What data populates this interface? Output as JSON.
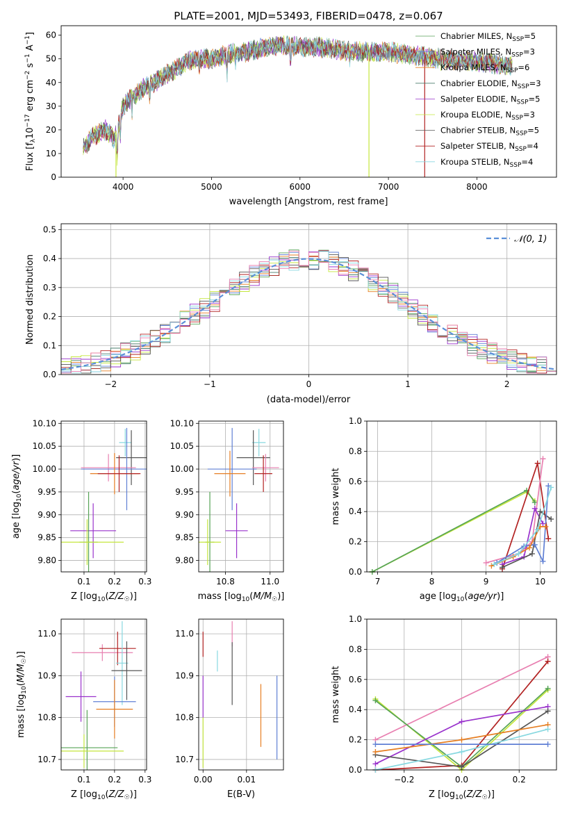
{
  "title": "PLATE=2001, MJD=53493, FIBERID=0478, z=0.067",
  "colors": {
    "chabrier_miles": "#56a356",
    "salpeter_miles": "#5f7fd4",
    "kroupa_miles": "#e67e22",
    "chabrier_elodie": "#4a7c6e",
    "salpeter_elodie": "#9932cc",
    "kroupa_elodie": "#c4e63c",
    "chabrier_stelib": "#555555",
    "salpeter_stelib": "#b22222",
    "kroupa_stelib": "#87d8e0",
    "extra_pink": "#e87fb0",
    "normal_curve": "#5a8fd8"
  },
  "chart_data": [
    {
      "id": "spectrum",
      "type": "line",
      "title": "PLATE=2001, MJD=53493, FIBERID=0478, z=0.067",
      "xlabel": "wavelength [Angstrom, rest frame]",
      "ylabel_parts": [
        "Flux [f",
        "λ",
        "10",
        "−17",
        " erg cm",
        "−2",
        " s",
        "−1",
        " A",
        "−1",
        "]"
      ],
      "xlim": [
        3300,
        8900
      ],
      "ylim": [
        0,
        64
      ],
      "xticks": [
        "4000",
        "5000",
        "6000",
        "7000",
        "8000"
      ],
      "yticks": [
        "0",
        "10",
        "20",
        "30",
        "40",
        "50",
        "60"
      ],
      "continuum": {
        "x": [
          3550,
          3650,
          3800,
          3900,
          4000,
          4100,
          4250,
          4400,
          4600,
          4800,
          5000,
          5200,
          5400,
          5600,
          5800,
          6000,
          6200,
          6400,
          6600,
          6800,
          7000,
          7200,
          7400,
          7600,
          7800,
          8000,
          8200,
          8400
        ],
        "y": [
          12,
          17,
          20,
          16,
          30,
          34,
          38,
          41,
          46,
          50,
          50,
          52,
          53,
          55,
          56,
          55,
          55,
          54,
          53,
          53,
          53,
          52,
          51,
          50,
          49,
          49,
          48,
          47
        ]
      },
      "legend": [
        {
          "label": "Chabrier MILES, N",
          "sub": "SSP",
          "value": "=5",
          "color_key": "chabrier_miles"
        },
        {
          "label": "Salpeter MILES, N",
          "sub": "SSP",
          "value": "=3",
          "color_key": "salpeter_miles"
        },
        {
          "label": "Kroupa MILES, N",
          "sub": "SSP",
          "value": "=6",
          "color_key": "kroupa_miles"
        },
        {
          "label": "Chabrier ELODIE, N",
          "sub": "SSP",
          "value": "=3",
          "color_key": "chabrier_elodie"
        },
        {
          "label": "Salpeter ELODIE, N",
          "sub": "SSP",
          "value": "=5",
          "color_key": "salpeter_elodie"
        },
        {
          "label": "Kroupa ELODIE, N",
          "sub": "SSP",
          "value": "=3",
          "color_key": "kroupa_elodie"
        },
        {
          "label": "Chabrier STELIB, N",
          "sub": "SSP",
          "value": "=5",
          "color_key": "chabrier_stelib"
        },
        {
          "label": "Salpeter STELIB, N",
          "sub": "SSP",
          "value": "=4",
          "color_key": "salpeter_stelib"
        },
        {
          "label": "Kroupa STELIB, N",
          "sub": "SSP",
          "value": "=4",
          "color_key": "kroupa_stelib"
        }
      ]
    },
    {
      "id": "residuals",
      "type": "line",
      "xlabel": "(data-model)/error",
      "ylabel": "Normed distribution",
      "xlim": [
        -2.5,
        2.5
      ],
      "ylim": [
        0,
        0.52
      ],
      "xticks": [
        "−2",
        "−1",
        "0",
        "1",
        "2"
      ],
      "yticks": [
        "0.0",
        "0.1",
        "0.2",
        "0.3",
        "0.4",
        "0.5"
      ],
      "grid": true,
      "legend": "𝒩(0, 1)",
      "histogram_bin_width": 0.1
    },
    {
      "id": "age_vs_Z",
      "type": "scatter",
      "xlabel": "Z [log10(Z/Z☉)]",
      "ylabel": "age  [log10(age/yr)]",
      "xlim": [
        0.025,
        0.305
      ],
      "ylim": [
        9.775,
        10.105
      ],
      "xticks": [
        "0.1",
        "0.2",
        "0.3"
      ],
      "yticks": [
        "9.80",
        "9.85",
        "9.90",
        "9.95",
        "10.00",
        "10.05",
        "10.10"
      ],
      "points": [
        {
          "color_key": "kroupa_stelib",
          "x": 0.235,
          "xerr": 0.02,
          "y": 10.058,
          "yerr": 0.03
        },
        {
          "color_key": "chabrier_stelib",
          "x": 0.255,
          "xerr": 0.05,
          "y": 10.025,
          "yerr": 0.06
        },
        {
          "color_key": "extra_pink",
          "x": 0.18,
          "xerr": 0.09,
          "y": 10.003,
          "yerr": 0.03
        },
        {
          "color_key": "salpeter_miles",
          "x": 0.24,
          "xerr": 0.15,
          "y": 10.0,
          "yerr": 0.09
        },
        {
          "color_key": "kroupa_miles",
          "x": 0.2,
          "xerr": 0.08,
          "y": 9.99,
          "yerr": 0.045
        },
        {
          "color_key": "salpeter_stelib",
          "x": 0.215,
          "xerr": 0.07,
          "y": 9.99,
          "yerr": 0.04
        },
        {
          "color_key": "salpeter_elodie",
          "x": 0.13,
          "xerr": 0.075,
          "y": 9.865,
          "yerr": 0.06
        },
        {
          "color_key": "chabrier_miles",
          "x": 0.115,
          "xerr": 0.03,
          "y": 9.84,
          "yerr": 0.11
        },
        {
          "color_key": "kroupa_elodie",
          "x": 0.11,
          "xerr": 0.12,
          "y": 9.84,
          "yerr": 0.05
        }
      ]
    },
    {
      "id": "age_vs_mass",
      "type": "scatter",
      "xlabel": "mass [log10(M/M☉)]",
      "xlim": [
        10.68,
        11.06
      ],
      "ylim": [
        9.775,
        10.105
      ],
      "xticks": [
        "10.8",
        "11.0"
      ],
      "yticks": [
        "9.80",
        "9.85",
        "9.90",
        "9.95",
        "10.00",
        "10.05",
        "10.10"
      ],
      "points": [
        {
          "color_key": "kroupa_stelib",
          "x": 10.95,
          "xerr": 0.03,
          "y": 10.058,
          "yerr": 0.03
        },
        {
          "color_key": "chabrier_stelib",
          "x": 10.925,
          "xerr": 0.075,
          "y": 10.025,
          "yerr": 0.06
        },
        {
          "color_key": "extra_pink",
          "x": 10.98,
          "xerr": 0.06,
          "y": 10.003,
          "yerr": 0.03
        },
        {
          "color_key": "salpeter_miles",
          "x": 10.83,
          "xerr": 0.11,
          "y": 10.0,
          "yerr": 0.09
        },
        {
          "color_key": "kroupa_miles",
          "x": 10.82,
          "xerr": 0.07,
          "y": 9.99,
          "yerr": 0.05
        },
        {
          "color_key": "salpeter_stelib",
          "x": 10.97,
          "xerr": 0.04,
          "y": 9.99,
          "yerr": 0.04
        },
        {
          "color_key": "salpeter_elodie",
          "x": 10.85,
          "xerr": 0.05,
          "y": 9.865,
          "yerr": 0.06
        },
        {
          "color_key": "chabrier_miles",
          "x": 10.73,
          "xerr": 0.02,
          "y": 9.84,
          "yerr": 0.11
        },
        {
          "color_key": "kroupa_elodie",
          "x": 10.72,
          "xerr": 0.06,
          "y": 9.84,
          "yerr": 0.05
        }
      ]
    },
    {
      "id": "weight_vs_age",
      "type": "line",
      "xlabel": "age  [log10(age/yr)]",
      "ylabel": "mass weight",
      "xlim": [
        6.8,
        10.3
      ],
      "ylim": [
        0,
        1
      ],
      "xticks": [
        "7",
        "8",
        "9",
        "10"
      ],
      "yticks": [
        "0.0",
        "0.2",
        "0.4",
        "0.6",
        "0.8",
        "1.0"
      ],
      "grid": true,
      "series": [
        {
          "color_key": "kroupa_elodie",
          "x": [
            6.9,
            9.75,
            9.9
          ],
          "y": [
            0.0,
            0.53,
            0.47
          ]
        },
        {
          "color_key": "chabrier_miles",
          "x": [
            6.9,
            9.75,
            9.9
          ],
          "y": [
            0.0,
            0.54,
            0.46
          ]
        },
        {
          "color_key": "salpeter_stelib",
          "x": [
            9.3,
            9.95,
            10.15
          ],
          "y": [
            0.02,
            0.72,
            0.22
          ]
        },
        {
          "color_key": "extra_pink",
          "x": [
            9.0,
            9.6,
            9.85,
            10.05
          ],
          "y": [
            0.06,
            0.12,
            0.2,
            0.75
          ]
        },
        {
          "color_key": "salpeter_elodie",
          "x": [
            9.3,
            9.7,
            9.9,
            10.05
          ],
          "y": [
            0.05,
            0.1,
            0.42,
            0.32
          ]
        },
        {
          "color_key": "chabrier_stelib",
          "x": [
            9.3,
            9.85,
            10.0,
            10.2
          ],
          "y": [
            0.03,
            0.12,
            0.4,
            0.35
          ]
        },
        {
          "color_key": "salpeter_miles",
          "x": [
            9.2,
            9.7,
            9.9,
            10.05,
            10.15
          ],
          "y": [
            0.06,
            0.17,
            0.18,
            0.07,
            0.57
          ]
        },
        {
          "color_key": "kroupa_miles",
          "x": [
            9.1,
            9.5,
            9.8,
            10.0,
            10.1
          ],
          "y": [
            0.04,
            0.1,
            0.16,
            0.3,
            0.3
          ]
        },
        {
          "color_key": "kroupa_stelib",
          "x": [
            9.15,
            9.6,
            9.95,
            10.2
          ],
          "y": [
            0.05,
            0.12,
            0.28,
            0.56
          ]
        }
      ]
    },
    {
      "id": "mass_vs_Z",
      "type": "scatter",
      "xlabel": "Z [log10(Z/Z☉)]",
      "ylabel": "mass [log10(M/M☉)]",
      "xlim": [
        0.025,
        0.305
      ],
      "ylim": [
        10.675,
        11.035
      ],
      "xticks": [
        "0.1",
        "0.2",
        "0.3"
      ],
      "yticks": [
        "10.7",
        "10.8",
        "10.9",
        "11.0"
      ],
      "points": [
        {
          "color_key": "extra_pink",
          "x": 0.16,
          "xerr": 0.1,
          "y": 10.955,
          "yerr": 0.02
        },
        {
          "color_key": "salpeter_stelib",
          "x": 0.21,
          "xerr": 0.06,
          "y": 10.965,
          "yerr": 0.04
        },
        {
          "color_key": "kroupa_stelib",
          "x": 0.225,
          "xerr": 0.02,
          "y": 10.93,
          "yerr": 0.1
        },
        {
          "color_key": "chabrier_stelib",
          "x": 0.24,
          "xerr": 0.05,
          "y": 10.912,
          "yerr": 0.07
        },
        {
          "color_key": "salpeter_elodie",
          "x": 0.09,
          "xerr": 0.05,
          "y": 10.85,
          "yerr": 0.06
        },
        {
          "color_key": "salpeter_miles",
          "x": 0.2,
          "xerr": 0.07,
          "y": 10.838,
          "yerr": 0.06
        },
        {
          "color_key": "kroupa_miles",
          "x": 0.2,
          "xerr": 0.06,
          "y": 10.82,
          "yerr": 0.07
        },
        {
          "color_key": "chabrier_miles",
          "x": 0.11,
          "xerr": 0.1,
          "y": 10.728,
          "yerr": 0.09
        },
        {
          "color_key": "kroupa_elodie",
          "x": 0.1,
          "xerr": 0.13,
          "y": 10.72,
          "yerr": 0.04
        }
      ]
    },
    {
      "id": "mass_vs_ebv",
      "type": "scatter",
      "xlabel": "E(B-V)",
      "xlim": [
        -0.001,
        0.0185
      ],
      "ylim": [
        10.675,
        11.035
      ],
      "xticks": [
        "0.00",
        "0.01"
      ],
      "yticks": [
        "10.7",
        "10.8",
        "10.9",
        "11.0"
      ],
      "points": [
        {
          "color_key": "salpeter_stelib",
          "x": 0.0,
          "y": 10.975,
          "yerr": 0.03
        },
        {
          "color_key": "extra_pink",
          "x": 0.0067,
          "y": 11.0,
          "yerr": 0.03
        },
        {
          "color_key": "kroupa_stelib",
          "x": 0.0033,
          "y": 10.935,
          "yerr": 0.025
        },
        {
          "color_key": "chabrier_stelib",
          "x": 0.0067,
          "y": 10.905,
          "yerr": 0.075
        },
        {
          "color_key": "salpeter_elodie",
          "x": 0.0,
          "y": 10.85,
          "yerr": 0.05
        },
        {
          "color_key": "kroupa_miles",
          "x": 0.0133,
          "y": 10.805,
          "yerr": 0.075
        },
        {
          "color_key": "salpeter_miles",
          "x": 0.017,
          "y": 10.8,
          "yerr": 0.1
        },
        {
          "color_key": "kroupa_elodie",
          "x": 0.0,
          "y": 10.74,
          "yerr": 0.06
        }
      ]
    },
    {
      "id": "weight_vs_Z",
      "type": "line",
      "xlabel": "Z [log10(Z/Z☉)]",
      "ylabel": "mass weight",
      "xlim": [
        -0.33,
        0.33
      ],
      "ylim": [
        0,
        1
      ],
      "xticks": [
        "−0.2",
        "0.0",
        "0.2"
      ],
      "yticks": [
        "0.0",
        "0.2",
        "0.4",
        "0.6",
        "0.8",
        "1.0"
      ],
      "grid": true,
      "series": [
        {
          "color_key": "extra_pink",
          "x": [
            -0.3,
            0.3
          ],
          "y": [
            0.2,
            0.75
          ]
        },
        {
          "color_key": "salpeter_stelib",
          "x": [
            -0.3,
            0.0,
            0.3
          ],
          "y": [
            0.0,
            0.03,
            0.72
          ]
        },
        {
          "color_key": "kroupa_elodie",
          "x": [
            -0.3,
            0.0,
            0.3
          ],
          "y": [
            0.47,
            0.0,
            0.53
          ]
        },
        {
          "color_key": "chabrier_miles",
          "x": [
            -0.3,
            0.0,
            0.3
          ],
          "y": [
            0.46,
            0.02,
            0.54
          ]
        },
        {
          "color_key": "salpeter_elodie",
          "x": [
            -0.3,
            0.0,
            0.3
          ],
          "y": [
            0.04,
            0.32,
            0.42
          ]
        },
        {
          "color_key": "chabrier_stelib",
          "x": [
            -0.3,
            0.0,
            0.3
          ],
          "y": [
            0.1,
            0.02,
            0.39
          ]
        },
        {
          "color_key": "kroupa_miles",
          "x": [
            -0.3,
            0.0,
            0.3
          ],
          "y": [
            0.12,
            0.2,
            0.3
          ]
        },
        {
          "color_key": "kroupa_stelib",
          "x": [
            -0.3,
            0.0,
            0.3
          ],
          "y": [
            0.0,
            0.12,
            0.27
          ]
        },
        {
          "color_key": "salpeter_miles",
          "x": [
            -0.3,
            0.3
          ],
          "y": [
            0.17,
            0.17
          ]
        }
      ]
    }
  ]
}
